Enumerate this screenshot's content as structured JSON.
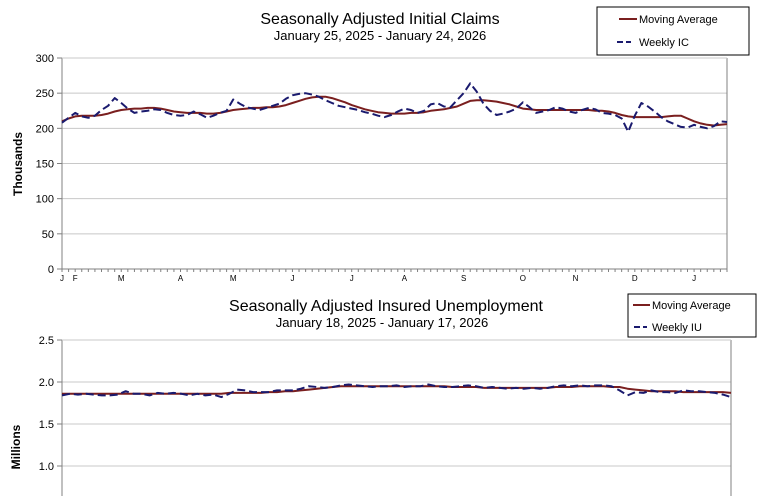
{
  "chart_data": [
    {
      "type": "line",
      "title": "Seasonally Adjusted Initial Claims",
      "subtitle": "January 25, 2025 - January 24, 2026",
      "ylabel": "Thousands",
      "ylim": [
        0,
        300
      ],
      "yticks": [
        0,
        50,
        100,
        150,
        200,
        250,
        300
      ],
      "xtick_labels": [
        "J",
        "F",
        "M",
        "A",
        "M",
        "J",
        "J",
        "A",
        "S",
        "O",
        "N",
        "D",
        "J"
      ],
      "xtick_index": [
        0,
        2,
        9,
        18,
        26,
        35,
        44,
        52,
        61,
        70,
        78,
        87,
        96
      ],
      "grid": true,
      "legend_position": "top-right",
      "colors": {
        "moving_average": "#7a1f1f",
        "weekly": "#1a1a6e",
        "grid": "#c8c8c8",
        "axis": "#808080"
      },
      "series": [
        {
          "name": "Moving Average",
          "style": "solid",
          "values": [
            210,
            214,
            217,
            218,
            218,
            218,
            219,
            221,
            224,
            226,
            227,
            228,
            228,
            229,
            229,
            228,
            226,
            224,
            223,
            222,
            222,
            222,
            221,
            221,
            222,
            224,
            226,
            227,
            228,
            229,
            229,
            230,
            230,
            231,
            233,
            236,
            239,
            242,
            244,
            245,
            245,
            243,
            240,
            237,
            233,
            230,
            227,
            225,
            223,
            222,
            221,
            221,
            221,
            222,
            222,
            223,
            225,
            226,
            227,
            229,
            231,
            235,
            239,
            240,
            240,
            239,
            238,
            236,
            234,
            231,
            228,
            227,
            226,
            226,
            226,
            226,
            226,
            226,
            226,
            226,
            226,
            225,
            225,
            224,
            222,
            219,
            217,
            216,
            216,
            216,
            216,
            216,
            217,
            218,
            218,
            214,
            210,
            207,
            205,
            204,
            205,
            206
          ]
        },
        {
          "name": "Weekly IC",
          "style": "dashed",
          "values": [
            208,
            215,
            222,
            217,
            215,
            218,
            226,
            232,
            243,
            236,
            228,
            222,
            224,
            225,
            227,
            226,
            222,
            219,
            218,
            219,
            224,
            220,
            215,
            218,
            222,
            225,
            241,
            235,
            230,
            228,
            226,
            229,
            232,
            235,
            242,
            247,
            249,
            250,
            248,
            245,
            240,
            236,
            232,
            230,
            228,
            226,
            223,
            221,
            218,
            216,
            219,
            224,
            228,
            226,
            222,
            225,
            234,
            236,
            231,
            230,
            240,
            250,
            264,
            252,
            235,
            225,
            219,
            221,
            224,
            228,
            237,
            230,
            222,
            224,
            226,
            230,
            228,
            224,
            222,
            226,
            229,
            227,
            222,
            221,
            219,
            214,
            195,
            218,
            236,
            231,
            224,
            216,
            210,
            206,
            202,
            201,
            205,
            202,
            200,
            203,
            210,
            209
          ]
        }
      ]
    },
    {
      "type": "line",
      "title": "Seasonally Adjusted Insured Unemployment",
      "subtitle": "January 18, 2025 - January 17, 2026",
      "ylabel": "Millions",
      "ylim": [
        0.5,
        2.5
      ],
      "yticks": [
        1.0,
        1.5,
        2.0,
        2.5
      ],
      "grid": true,
      "legend_position": "top-right",
      "colors": {
        "moving_average": "#7a1f1f",
        "weekly": "#1a1a6e",
        "grid": "#c8c8c8",
        "axis": "#808080"
      },
      "series": [
        {
          "name": "Moving Average",
          "style": "solid",
          "values": [
            1.86,
            1.86,
            1.86,
            1.86,
            1.86,
            1.86,
            1.86,
            1.86,
            1.86,
            1.86,
            1.86,
            1.86,
            1.86,
            1.86,
            1.86,
            1.86,
            1.86,
            1.86,
            1.86,
            1.86,
            1.86,
            1.87,
            1.87,
            1.87,
            1.87,
            1.87,
            1.88,
            1.88,
            1.89,
            1.89,
            1.9,
            1.91,
            1.92,
            1.93,
            1.94,
            1.95,
            1.95,
            1.95,
            1.95,
            1.95,
            1.95,
            1.95,
            1.95,
            1.95,
            1.95,
            1.95,
            1.95,
            1.95,
            1.95,
            1.94,
            1.94,
            1.94,
            1.94,
            1.93,
            1.93,
            1.93,
            1.93,
            1.93,
            1.93,
            1.93,
            1.93,
            1.93,
            1.94,
            1.94,
            1.94,
            1.95,
            1.95,
            1.95,
            1.95,
            1.94,
            1.94,
            1.92,
            1.91,
            1.9,
            1.89,
            1.89,
            1.89,
            1.89,
            1.88,
            1.88,
            1.88,
            1.88,
            1.88,
            1.88,
            1.87
          ]
        },
        {
          "name": "Weekly IU",
          "style": "dashed",
          "values": [
            1.84,
            1.86,
            1.85,
            1.86,
            1.85,
            1.84,
            1.84,
            1.85,
            1.89,
            1.86,
            1.86,
            1.84,
            1.87,
            1.86,
            1.87,
            1.86,
            1.84,
            1.86,
            1.84,
            1.85,
            1.82,
            1.86,
            1.91,
            1.9,
            1.88,
            1.88,
            1.88,
            1.9,
            1.9,
            1.9,
            1.92,
            1.95,
            1.94,
            1.93,
            1.94,
            1.96,
            1.97,
            1.96,
            1.95,
            1.94,
            1.95,
            1.95,
            1.96,
            1.94,
            1.95,
            1.95,
            1.97,
            1.95,
            1.94,
            1.94,
            1.95,
            1.96,
            1.95,
            1.93,
            1.94,
            1.93,
            1.92,
            1.93,
            1.92,
            1.93,
            1.92,
            1.93,
            1.95,
            1.96,
            1.95,
            1.96,
            1.95,
            1.96,
            1.96,
            1.95,
            1.9,
            1.84,
            1.88,
            1.87,
            1.9,
            1.88,
            1.88,
            1.87,
            1.9,
            1.89,
            1.89,
            1.88,
            1.87,
            1.85,
            1.82
          ]
        }
      ]
    }
  ]
}
